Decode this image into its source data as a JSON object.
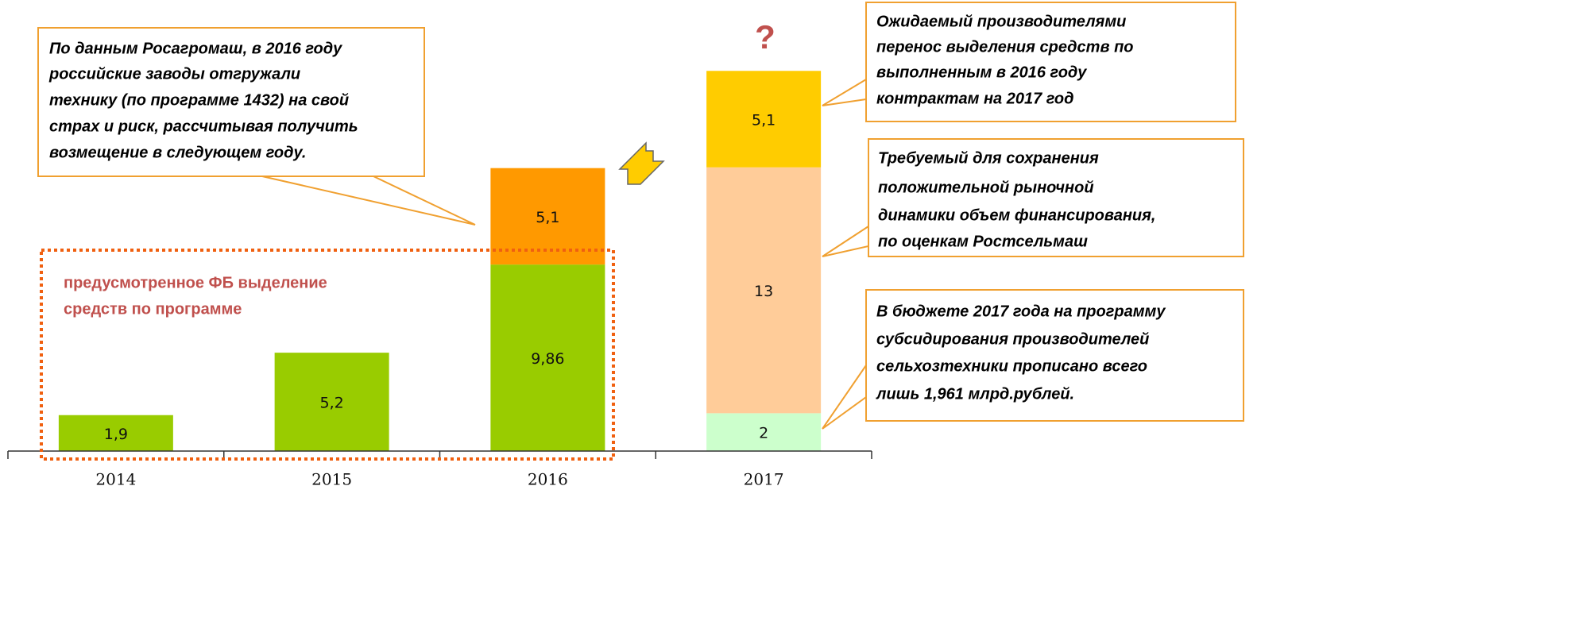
{
  "chart_data": {
    "type": "stacked_bar",
    "categories": [
      "2014",
      "2015",
      "2016",
      "2017"
    ],
    "ylim": [
      0,
      22
    ],
    "series": [
      {
        "values": [
          1.9,
          5.2,
          9.86,
          2
        ],
        "value_labels": [
          "1,9",
          "5,2",
          "9,86",
          "2"
        ],
        "colors": [
          "#99cc00",
          "#99cc00",
          "#99cc00",
          "#ccffcc"
        ]
      },
      {
        "values": [
          null,
          null,
          5.1,
          13
        ],
        "value_labels": [
          null,
          null,
          "5,1",
          "13"
        ],
        "colors": [
          null,
          null,
          "#ff9900",
          "#ffcc99"
        ]
      },
      {
        "values": [
          null,
          null,
          null,
          5.1
        ],
        "value_labels": [
          null,
          null,
          null,
          "5,1"
        ],
        "colors": [
          null,
          null,
          null,
          "#ffcc00"
        ]
      }
    ],
    "annotations": [
      {
        "lines": [
          "По данным Росагромаш, в 2016 году",
          "российские заводы отгружали",
          "технику (по программе 1432) на свой",
          "страх и риск, рассчитывая получить",
          "возмещение в следующем году."
        ]
      },
      {
        "lines": [
          "Ожидаемый производителями",
          "перенос выделения средств по",
          "выполненным в 2016 году",
          "контрактам на 2017 год"
        ]
      },
      {
        "lines": [
          "Требуемый для сохранения",
          "положительной рыночной",
          "динамики объем финансирования,",
          "по оценкам Ростсельмаш"
        ]
      },
      {
        "lines": [
          "В бюджете 2017 года на программу",
          "субсидирования производителей",
          "сельхозтехники прописано всего",
          "лишь 1,961 млрд.рублей."
        ]
      },
      {
        "lines": [
          "предусмотренное ФБ выделение",
          "средств по программе"
        ]
      },
      {
        "lines": [
          "?"
        ]
      }
    ]
  }
}
